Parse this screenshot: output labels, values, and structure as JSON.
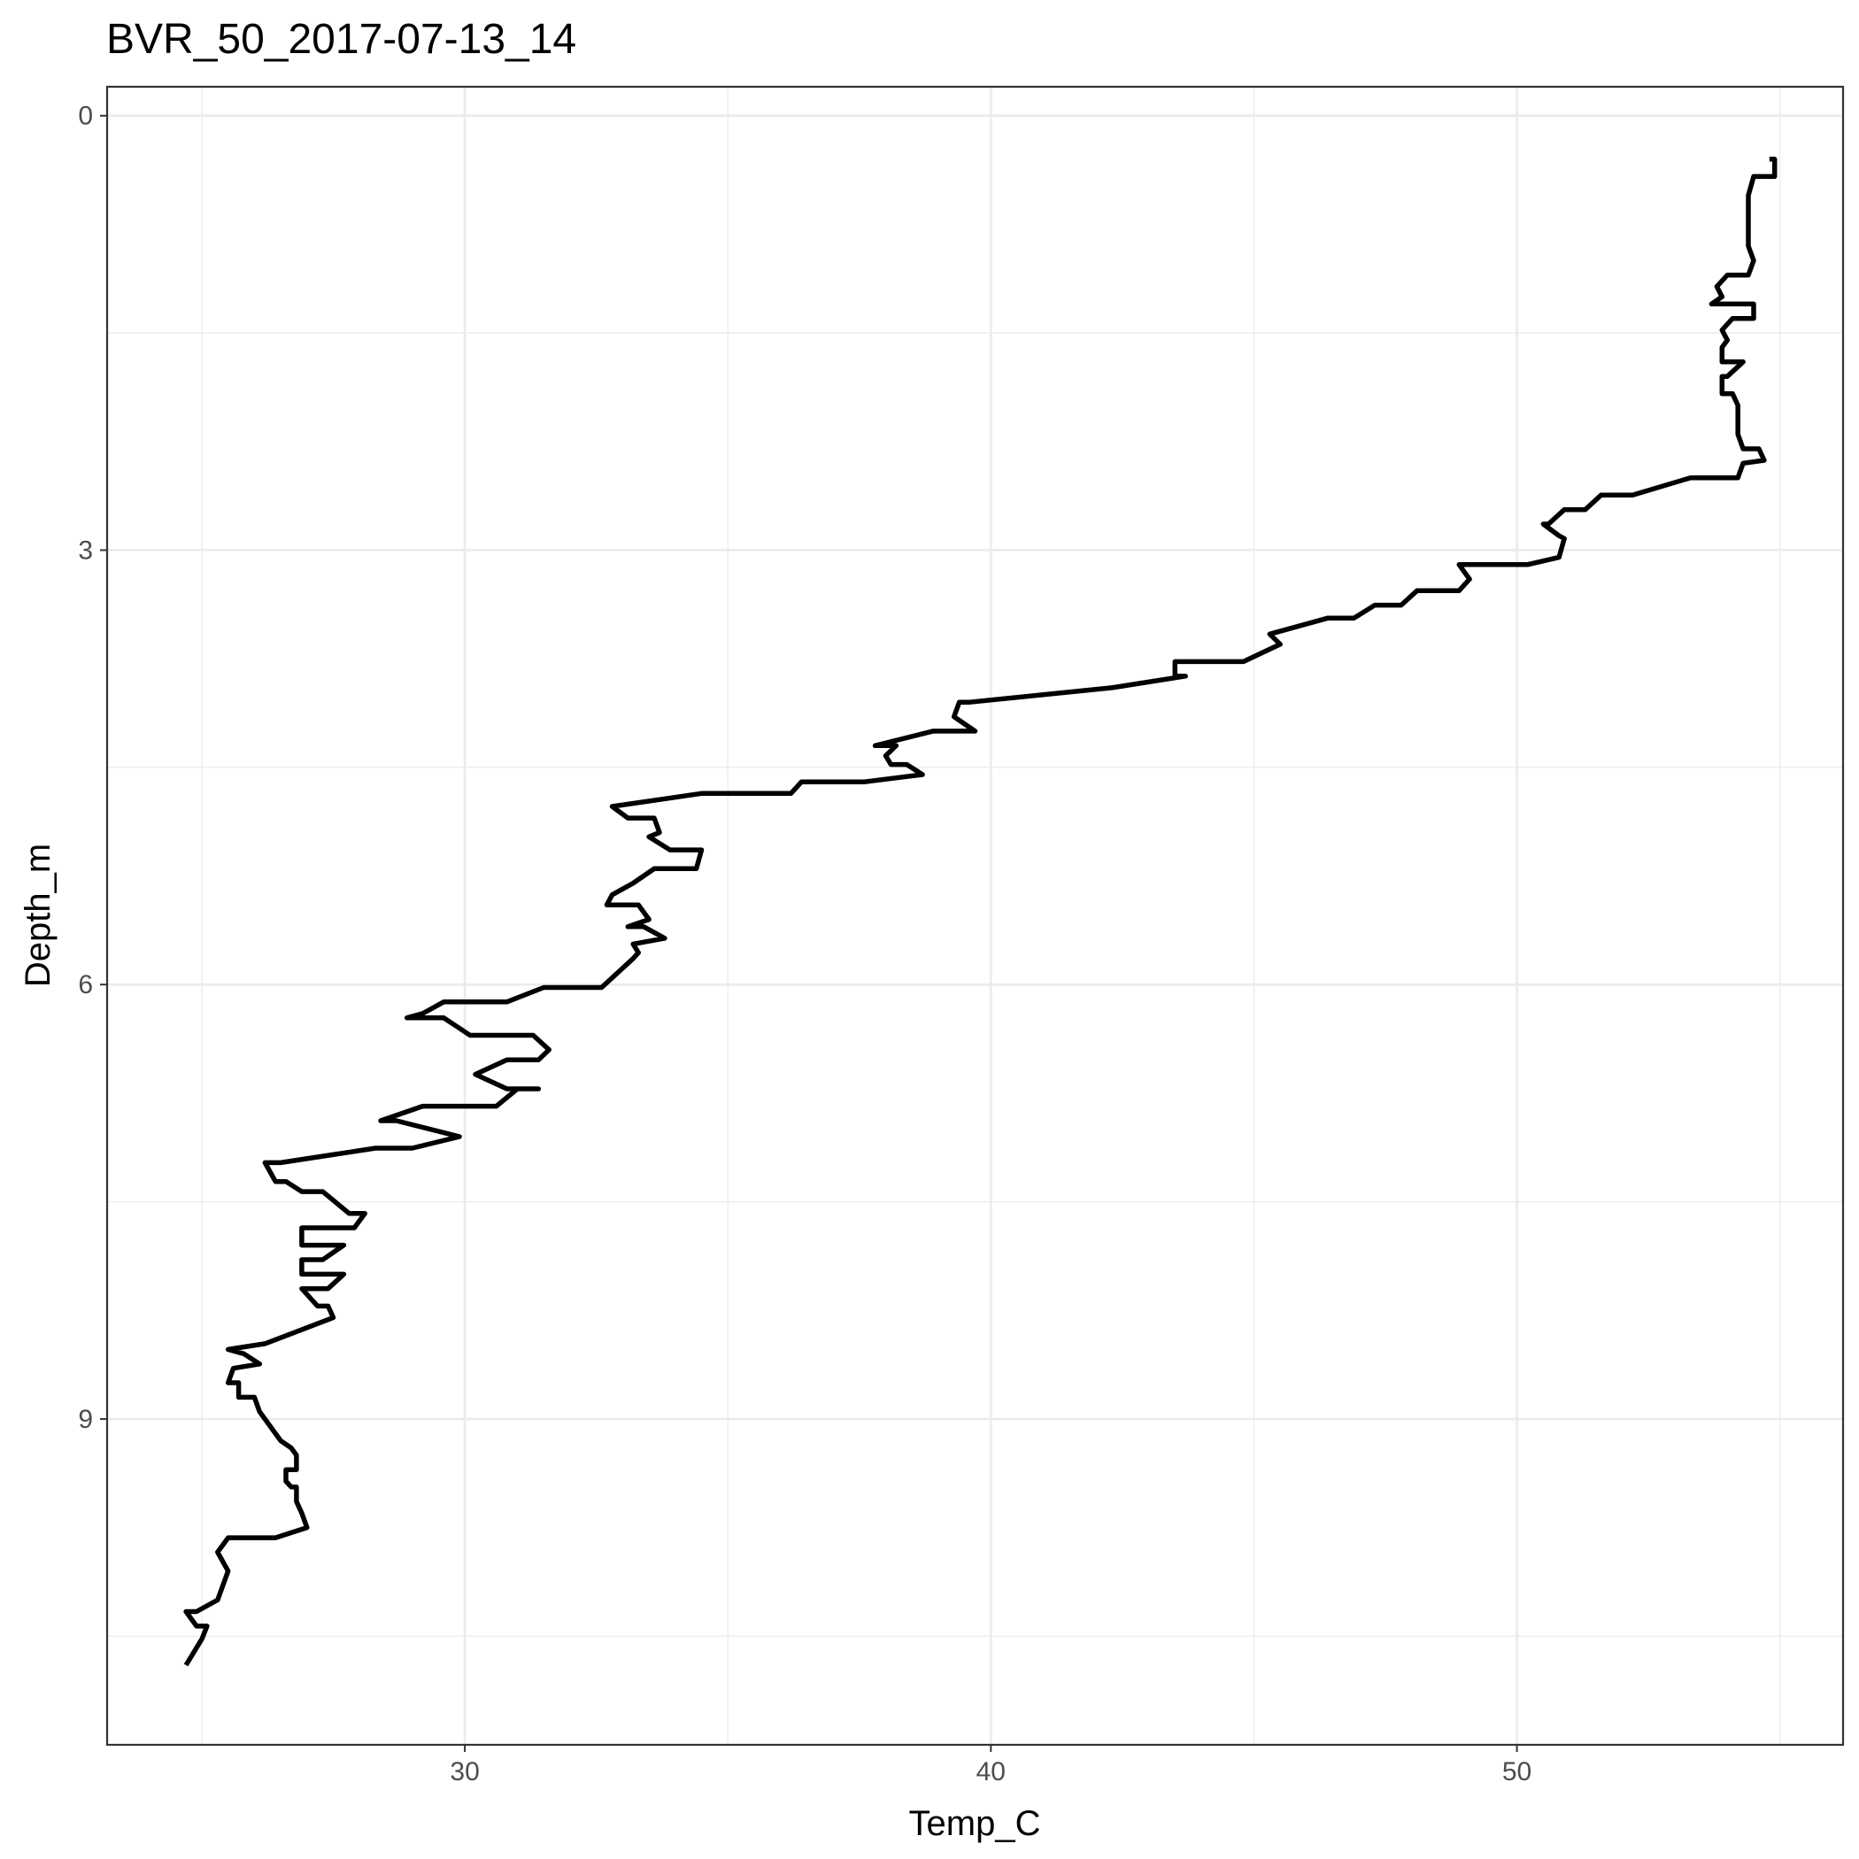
{
  "chart_data": {
    "type": "line",
    "title": "BVR_50_2017-07-13_14",
    "xlabel": "Temp_C",
    "ylabel": "Depth_m",
    "xlim": [
      23.2,
      56.2
    ],
    "ylim": [
      11.25,
      -0.2
    ],
    "y_reversed": true,
    "x_ticks": [
      30,
      40,
      50
    ],
    "x_minor_ticks": [
      25,
      35,
      45,
      55
    ],
    "y_ticks": [
      0,
      3,
      6,
      9
    ],
    "y_minor_ticks": [
      1.5,
      4.5,
      7.5,
      10.5
    ],
    "grid": true,
    "legend": "none",
    "line_color": "#000000",
    "series": [
      {
        "points": [
          [
            54.8,
            0.3
          ],
          [
            54.9,
            0.3
          ],
          [
            54.9,
            0.42
          ],
          [
            54.5,
            0.42
          ],
          [
            54.4,
            0.55
          ],
          [
            54.4,
            0.75
          ],
          [
            54.4,
            0.9
          ],
          [
            54.5,
            1.0
          ],
          [
            54.4,
            1.1
          ],
          [
            54.0,
            1.1
          ],
          [
            53.8,
            1.18
          ],
          [
            53.9,
            1.25
          ],
          [
            53.7,
            1.3
          ],
          [
            54.1,
            1.3
          ],
          [
            54.5,
            1.3
          ],
          [
            54.5,
            1.4
          ],
          [
            54.1,
            1.4
          ],
          [
            53.9,
            1.48
          ],
          [
            54.0,
            1.55
          ],
          [
            53.9,
            1.6
          ],
          [
            53.9,
            1.7
          ],
          [
            54.3,
            1.7
          ],
          [
            54.0,
            1.8
          ],
          [
            53.9,
            1.8
          ],
          [
            53.9,
            1.92
          ],
          [
            54.1,
            1.92
          ],
          [
            54.2,
            2.0
          ],
          [
            54.2,
            2.1
          ],
          [
            54.2,
            2.2
          ],
          [
            54.3,
            2.3
          ],
          [
            54.6,
            2.3
          ],
          [
            54.7,
            2.38
          ],
          [
            54.3,
            2.4
          ],
          [
            54.2,
            2.5
          ],
          [
            54.2,
            2.5
          ],
          [
            53.3,
            2.5
          ],
          [
            52.2,
            2.62
          ],
          [
            51.6,
            2.62
          ],
          [
            51.3,
            2.72
          ],
          [
            50.9,
            2.72
          ],
          [
            50.6,
            2.82
          ],
          [
            50.5,
            2.82
          ],
          [
            50.8,
            2.9
          ],
          [
            50.9,
            2.92
          ],
          [
            50.8,
            3.05
          ],
          [
            50.2,
            3.1
          ],
          [
            48.9,
            3.1
          ],
          [
            49.1,
            3.2
          ],
          [
            48.9,
            3.28
          ],
          [
            48.1,
            3.28
          ],
          [
            47.8,
            3.38
          ],
          [
            47.3,
            3.38
          ],
          [
            46.9,
            3.47
          ],
          [
            46.4,
            3.47
          ],
          [
            45.3,
            3.58
          ],
          [
            45.5,
            3.65
          ],
          [
            44.8,
            3.77
          ],
          [
            44.5,
            3.77
          ],
          [
            43.5,
            3.77
          ],
          [
            43.5,
            3.87
          ],
          [
            43.7,
            3.87
          ],
          [
            42.3,
            3.95
          ],
          [
            39.6,
            4.05
          ],
          [
            39.4,
            4.05
          ],
          [
            39.3,
            4.15
          ],
          [
            39.5,
            4.2
          ],
          [
            39.7,
            4.25
          ],
          [
            38.9,
            4.25
          ],
          [
            37.8,
            4.35
          ],
          [
            37.8,
            4.35
          ],
          [
            38.2,
            4.35
          ],
          [
            38.0,
            4.42
          ],
          [
            38.1,
            4.48
          ],
          [
            38.4,
            4.48
          ],
          [
            38.7,
            4.55
          ],
          [
            37.6,
            4.6
          ],
          [
            36.4,
            4.6
          ],
          [
            36.2,
            4.68
          ],
          [
            34.5,
            4.68
          ],
          [
            32.8,
            4.77
          ],
          [
            33.1,
            4.85
          ],
          [
            33.6,
            4.85
          ],
          [
            33.7,
            4.95
          ],
          [
            33.5,
            4.98
          ],
          [
            33.9,
            5.07
          ],
          [
            34.5,
            5.07
          ],
          [
            34.4,
            5.2
          ],
          [
            33.6,
            5.2
          ],
          [
            33.2,
            5.3
          ],
          [
            32.8,
            5.38
          ],
          [
            32.7,
            5.45
          ],
          [
            33.3,
            5.45
          ],
          [
            33.5,
            5.55
          ],
          [
            33.1,
            5.6
          ],
          [
            33.4,
            5.6
          ],
          [
            33.8,
            5.68
          ],
          [
            33.2,
            5.72
          ],
          [
            33.3,
            5.78
          ],
          [
            33.2,
            5.82
          ],
          [
            32.6,
            6.02
          ],
          [
            31.5,
            6.02
          ],
          [
            30.8,
            6.12
          ],
          [
            30.1,
            6.12
          ],
          [
            29.6,
            6.12
          ],
          [
            29.2,
            6.2
          ],
          [
            28.9,
            6.23
          ],
          [
            29.6,
            6.23
          ],
          [
            30.1,
            6.35
          ],
          [
            31.3,
            6.35
          ],
          [
            31.6,
            6.45
          ],
          [
            31.4,
            6.52
          ],
          [
            30.8,
            6.52
          ],
          [
            30.2,
            6.62
          ],
          [
            30.8,
            6.72
          ],
          [
            31.4,
            6.72
          ],
          [
            31.0,
            6.72
          ],
          [
            30.6,
            6.84
          ],
          [
            29.2,
            6.84
          ],
          [
            28.4,
            6.94
          ],
          [
            28.7,
            6.94
          ],
          [
            29.9,
            7.05
          ],
          [
            29.0,
            7.13
          ],
          [
            28.3,
            7.13
          ],
          [
            26.5,
            7.23
          ],
          [
            26.2,
            7.23
          ],
          [
            26.4,
            7.36
          ],
          [
            26.6,
            7.36
          ],
          [
            26.9,
            7.43
          ],
          [
            27.3,
            7.43
          ],
          [
            27.8,
            7.58
          ],
          [
            28.1,
            7.58
          ],
          [
            27.9,
            7.68
          ],
          [
            27.4,
            7.68
          ],
          [
            26.9,
            7.68
          ],
          [
            26.9,
            7.8
          ],
          [
            27.7,
            7.8
          ],
          [
            27.3,
            7.9
          ],
          [
            26.9,
            7.9
          ],
          [
            26.9,
            8.0
          ],
          [
            27.2,
            8.0
          ],
          [
            27.7,
            8.0
          ],
          [
            27.4,
            8.1
          ],
          [
            26.9,
            8.1
          ],
          [
            27.2,
            8.22
          ],
          [
            27.4,
            8.22
          ],
          [
            27.5,
            8.3
          ],
          [
            26.2,
            8.48
          ],
          [
            25.5,
            8.52
          ],
          [
            25.8,
            8.55
          ],
          [
            26.1,
            8.62
          ],
          [
            25.6,
            8.65
          ],
          [
            25.5,
            8.75
          ],
          [
            25.7,
            8.75
          ],
          [
            25.7,
            8.85
          ],
          [
            25.9,
            8.85
          ],
          [
            26.0,
            8.85
          ],
          [
            26.1,
            8.95
          ],
          [
            26.3,
            9.05
          ],
          [
            26.5,
            9.15
          ],
          [
            26.7,
            9.2
          ],
          [
            26.8,
            9.25
          ],
          [
            26.8,
            9.35
          ],
          [
            26.6,
            9.35
          ],
          [
            26.6,
            9.43
          ],
          [
            26.7,
            9.47
          ],
          [
            26.8,
            9.47
          ],
          [
            26.8,
            9.57
          ],
          [
            26.9,
            9.65
          ],
          [
            27.0,
            9.75
          ],
          [
            26.4,
            9.82
          ],
          [
            25.5,
            9.82
          ],
          [
            25.3,
            9.92
          ],
          [
            25.5,
            10.05
          ],
          [
            25.3,
            10.25
          ],
          [
            24.9,
            10.33
          ],
          [
            24.7,
            10.33
          ],
          [
            24.9,
            10.43
          ],
          [
            25.1,
            10.43
          ],
          [
            25.0,
            10.52
          ],
          [
            24.7,
            10.7
          ]
        ]
      }
    ]
  }
}
